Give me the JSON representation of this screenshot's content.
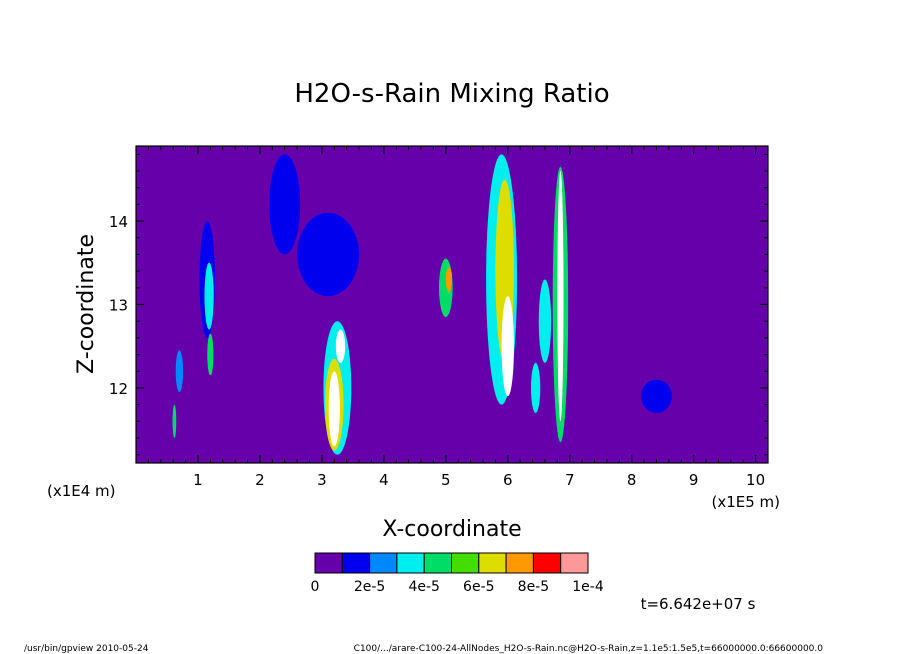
{
  "chart_data": {
    "type": "heatmap",
    "title": "H2O-s-Rain Mixing Ratio",
    "xlabel": "X-coordinate",
    "ylabel": "Z-coordinate",
    "x_scale_note": "(x1E5 m)",
    "y_scale_note": "(x1E4 m)",
    "xlim": [
      0,
      10.2
    ],
    "ylim": [
      11.1,
      14.9
    ],
    "x_ticks": [
      1,
      2,
      3,
      4,
      5,
      6,
      7,
      8,
      9,
      10
    ],
    "y_ticks": [
      12,
      13,
      14
    ],
    "x_tick_labels": [
      "1",
      "2",
      "3",
      "4",
      "5",
      "6",
      "7",
      "8",
      "9",
      "10"
    ],
    "y_tick_labels": [
      "12",
      "13",
      "14"
    ],
    "background_color": "#6600aa",
    "colorbar": {
      "levels": [
        0,
        1e-05,
        2e-05,
        3e-05,
        4e-05,
        5e-05,
        6e-05,
        7e-05,
        8e-05,
        9e-05,
        0.0001
      ],
      "colors": [
        "#6600aa",
        "#0000ee",
        "#0088ff",
        "#00eeee",
        "#00dd66",
        "#44dd00",
        "#dddd00",
        "#ff9900",
        "#ff0000",
        "#ff9999"
      ],
      "tick_labels": [
        "0",
        "2e-5",
        "4e-5",
        "6e-5",
        "8e-5",
        "1e-4"
      ]
    },
    "features": [
      {
        "x": 0.7,
        "z": 12.2,
        "w": 0.12,
        "h": 0.5,
        "level": 2
      },
      {
        "x": 0.62,
        "z": 11.6,
        "w": 0.06,
        "h": 0.4,
        "level": 4
      },
      {
        "x": 1.15,
        "z": 13.3,
        "w": 0.25,
        "h": 1.4,
        "level": 1
      },
      {
        "x": 1.18,
        "z": 13.1,
        "w": 0.15,
        "h": 0.8,
        "level": 3
      },
      {
        "x": 1.2,
        "z": 12.4,
        "w": 0.1,
        "h": 0.5,
        "level": 4
      },
      {
        "x": 2.4,
        "z": 14.2,
        "w": 0.5,
        "h": 1.2,
        "level": 1
      },
      {
        "x": 3.1,
        "z": 13.6,
        "w": 1.0,
        "h": 1.0,
        "level": 1
      },
      {
        "x": 3.25,
        "z": 12.0,
        "w": 0.45,
        "h": 1.6,
        "level": 3
      },
      {
        "x": 3.2,
        "z": 11.8,
        "w": 0.3,
        "h": 1.1,
        "level": 6
      },
      {
        "x": 3.2,
        "z": 11.75,
        "w": 0.18,
        "h": 0.9,
        "level": 10
      },
      {
        "x": 3.3,
        "z": 12.5,
        "w": 0.15,
        "h": 0.4,
        "level": 10
      },
      {
        "x": 5.0,
        "z": 13.2,
        "w": 0.22,
        "h": 0.7,
        "level": 4
      },
      {
        "x": 5.05,
        "z": 13.3,
        "w": 0.1,
        "h": 0.3,
        "level": 7
      },
      {
        "x": 5.9,
        "z": 13.3,
        "w": 0.5,
        "h": 3.0,
        "level": 3
      },
      {
        "x": 5.95,
        "z": 13.4,
        "w": 0.3,
        "h": 2.2,
        "level": 6
      },
      {
        "x": 6.0,
        "z": 12.5,
        "w": 0.2,
        "h": 1.2,
        "level": 10
      },
      {
        "x": 6.6,
        "z": 12.8,
        "w": 0.2,
        "h": 1.0,
        "level": 3
      },
      {
        "x": 6.85,
        "z": 13.0,
        "w": 0.25,
        "h": 3.3,
        "level": 4
      },
      {
        "x": 6.85,
        "z": 13.1,
        "w": 0.1,
        "h": 3.0,
        "level": 10
      },
      {
        "x": 6.45,
        "z": 12.0,
        "w": 0.15,
        "h": 0.6,
        "level": 3
      },
      {
        "x": 8.4,
        "z": 11.9,
        "w": 0.5,
        "h": 0.4,
        "level": 1
      }
    ]
  },
  "time_label": "t=6.642e+07 s",
  "footer_left": "/usr/bin/gpview   2010-05-24",
  "footer_right": "C100/.../arare-C100-24-AllNodes_H2O-s-Rain.nc@H2O-s-Rain,z=1.1e5:1.5e5,t=66000000.0:66600000.0"
}
